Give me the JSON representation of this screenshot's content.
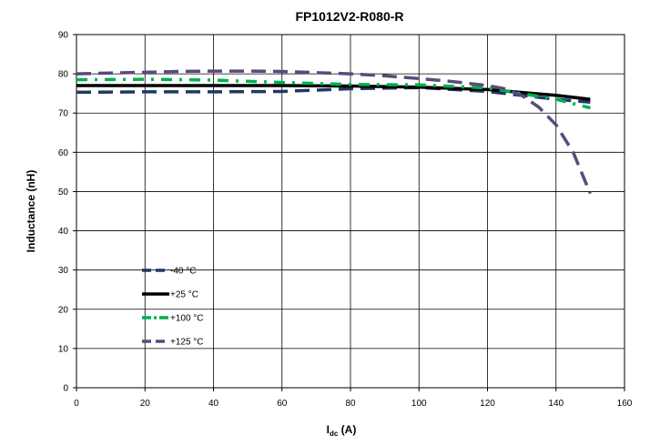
{
  "chart_data": {
    "type": "line",
    "title": "FP1012V2-R080-R",
    "xlabel_main": "I",
    "xlabel_sub": "dc",
    "xlabel_unit": " (A)",
    "ylabel": "Inductance (nH)",
    "xlim": [
      0,
      160
    ],
    "ylim": [
      0,
      90
    ],
    "x_ticks": [
      0,
      20,
      40,
      60,
      80,
      100,
      120,
      140,
      160
    ],
    "y_ticks": [
      0,
      10,
      20,
      30,
      40,
      50,
      60,
      70,
      80,
      90
    ],
    "grid": true,
    "legend_position": "bottom-left inside plot",
    "series": [
      {
        "name": "-40 °C",
        "color": "#1f3864",
        "dash": "long-dash",
        "x": [
          0,
          20,
          40,
          60,
          80,
          100,
          120,
          140,
          150
        ],
        "y": [
          75.3,
          75.4,
          75.4,
          75.5,
          76.2,
          76.5,
          75.5,
          73.5,
          72.8
        ]
      },
      {
        "name": "+25 °C",
        "color": "#000000",
        "dash": "solid",
        "x": [
          0,
          20,
          40,
          60,
          80,
          100,
          120,
          140,
          150
        ],
        "y": [
          77.0,
          77.0,
          77.0,
          77.0,
          76.9,
          76.6,
          76.0,
          74.5,
          73.5
        ]
      },
      {
        "name": "+100 °C",
        "color": "#00b050",
        "dash": "dash-dot",
        "x": [
          0,
          20,
          40,
          60,
          80,
          100,
          120,
          140,
          150
        ],
        "y": [
          78.5,
          78.6,
          78.4,
          77.8,
          77.3,
          77.2,
          76.4,
          73.5,
          71.3
        ]
      },
      {
        "name": "+125 °C",
        "color": "#5b4a7a",
        "dash": "long-dash",
        "x": [
          0,
          10,
          20,
          30,
          40,
          50,
          60,
          70,
          80,
          90,
          100,
          110,
          120,
          125,
          130,
          135,
          140,
          145,
          150
        ],
        "y": [
          80.0,
          80.2,
          80.4,
          80.6,
          80.7,
          80.7,
          80.6,
          80.3,
          80.0,
          79.5,
          78.8,
          78.0,
          77.0,
          76.2,
          74.5,
          71.5,
          67.0,
          60.0,
          49.5
        ]
      }
    ]
  }
}
